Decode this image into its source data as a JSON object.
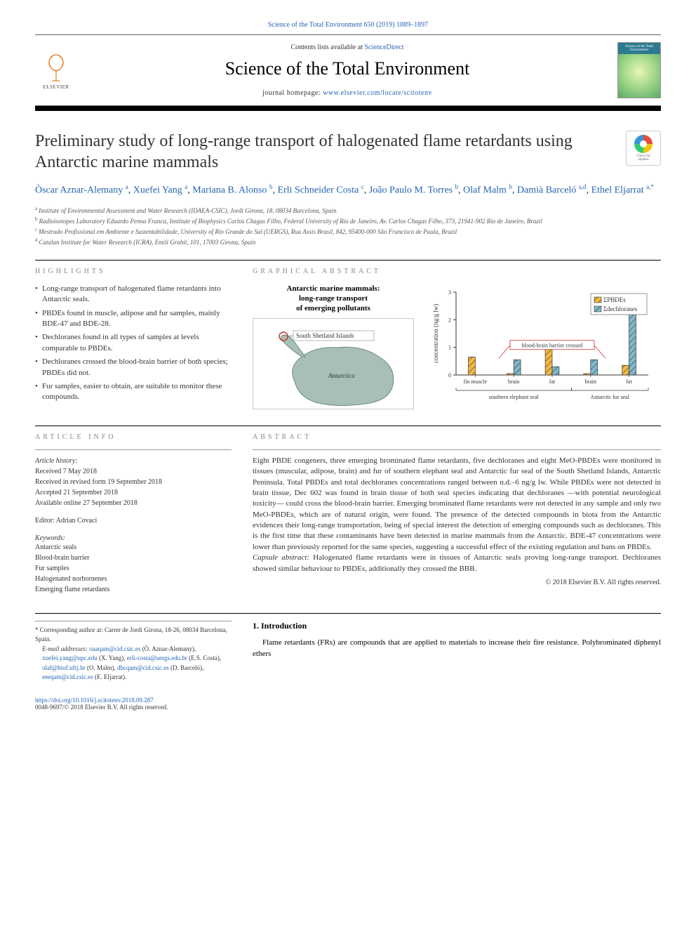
{
  "header": {
    "citation": "Science of the Total Environment 650 (2019) 1889–1897",
    "contents_prefix": "Contents lists available at ",
    "contents_link": "ScienceDirect",
    "journal_name": "Science of the Total Environment",
    "homepage_prefix": "journal homepage: ",
    "homepage_url": "www.elsevier.com/locate/scitotenv",
    "elsevier_label": "ELSEVIER",
    "cover_title": "Science of the Total Environment"
  },
  "check_badge": {
    "line1": "Check for",
    "line2": "updates"
  },
  "title": "Preliminary study of long-range transport of halogenated flame retardants using Antarctic marine mammals",
  "authors": [
    {
      "name": "Òscar Aznar-Alemany",
      "affil": "a"
    },
    {
      "name": "Xuefei Yang",
      "affil": "a"
    },
    {
      "name": "Mariana B. Alonso",
      "affil": "b"
    },
    {
      "name": "Erli Schneider Costa",
      "affil": "c"
    },
    {
      "name": "João Paulo M. Torres",
      "affil": "b"
    },
    {
      "name": "Olaf Malm",
      "affil": "b"
    },
    {
      "name": "Damià Barceló",
      "affil": "a,d"
    },
    {
      "name": "Ethel Eljarrat",
      "affil": "a,*"
    }
  ],
  "affiliations": [
    {
      "sup": "a",
      "text": "Institute of Environmental Assessment and Water Research (IDAEA-CSIC), Jordi Girona, 18, 08034 Barcelona, Spain"
    },
    {
      "sup": "b",
      "text": "Radioisotopes Laboratory Eduardo Penna Franca, Institute of Biophysics Carlos Chagas Filho, Federal University of Rio de Janeiro, Av. Carlos Chagas Filho, 373, 21941-902 Rio de Janeiro, Brazil"
    },
    {
      "sup": "c",
      "text": "Mestrado Profissional em Ambiente e Sustentabilidade, University of Rio Grande do Sul (UERGS), Rua Assis Brasil, 842, 95400-000 São Francisco de Paula, Brazil"
    },
    {
      "sup": "d",
      "text": "Catalan Institute for Water Research (ICRA), Emili Grahit, 101, 17003 Girona, Spain"
    }
  ],
  "highlights": {
    "label": "HIGHLIGHTS",
    "items": [
      "Long-range transport of halogenated flame retardants into Antarctic seals.",
      "PBDEs found in muscle, adipose and fur samples, mainly BDE-47 and BDE-28.",
      "Dechloranes found in all types of samples at levels comparable to PBDEs.",
      "Dechloranes crossed the blood-brain barrier of both species; PBDEs did not.",
      "Fur samples, easier to obtain, are suitable to monitor these compounds."
    ]
  },
  "graphical_abstract": {
    "label": "GRAPHICAL ABSTRACT",
    "map_title_l1": "Antarctic marine mammals:",
    "map_title_l2": "long-range transport",
    "map_title_l3": "of emerging pollutants",
    "map_label_ssi": "South Shetland Islands",
    "map_label_ant": "Antarctica",
    "map_colors": {
      "land": "#a8bfb5",
      "ocean": "#ffffff",
      "outline": "#6a8a7c",
      "circle": "#cc3333",
      "label_box_border": "#999"
    },
    "chart": {
      "type": "bar-grouped",
      "ylabel": "concentration (ng/g lw)",
      "ylim": [
        0,
        3
      ],
      "ytick_step": 1,
      "categories": [
        "fin muscle",
        "brain",
        "fat",
        "brain",
        "fat"
      ],
      "group_labels": [
        "southern elephant seal",
        "Antarctic fur seal"
      ],
      "group_spans": [
        [
          0,
          3
        ],
        [
          3,
          5
        ]
      ],
      "series": [
        {
          "name": "ΣPBDEs",
          "color": "#f4b942",
          "hatch": "diag",
          "values": [
            0.65,
            0.05,
            1.25,
            0.05,
            0.35
          ]
        },
        {
          "name": "Σdechloranes",
          "color": "#7fb8cc",
          "hatch": "diag",
          "values": [
            0.0,
            0.55,
            0.3,
            0.55,
            2.55
          ]
        }
      ],
      "annotation": {
        "text": "blood-brain barrier crossed",
        "box_border": "#cc3333",
        "y": 1.05,
        "x_from": 0.5,
        "x_to": 4.5
      },
      "legend_box_border": "#666",
      "axis_color": "#333",
      "bar_width": 0.36,
      "label_fontsize": 9,
      "tick_fontsize": 8
    }
  },
  "article_info": {
    "label": "ARTICLE INFO",
    "history_label": "Article history:",
    "history": [
      "Received 7 May 2018",
      "Received in revised form 19 September 2018",
      "Accepted 21 September 2018",
      "Available online 27 September 2018"
    ],
    "editor_label": "Editor: ",
    "editor": "Adrian Covaci",
    "keywords_label": "Keywords:",
    "keywords": [
      "Antarctic seals",
      "Blood-brain barrier",
      "Fur samples",
      "Halogenated norbornenes",
      "Emerging flame retardants"
    ]
  },
  "abstract": {
    "label": "ABSTRACT",
    "body": "Eight PBDE congeners, three emerging brominated flame retardants, five dechloranes and eight MeO-PBDEs were monitored in tissues (muscular, adipose, brain) and fur of southern elephant seal and Antarctic fur seal of the South Shetland Islands, Antarctic Peninsula. Total PBDEs and total dechloranes concentrations ranged between n.d.–6 ng/g lw. While PBDEs were not detected in brain tissue, Dec 602 was found in brain tissue of both seal species indicating that dechloranes —with potential neurological toxicity— could cross the blood-brain barrier. Emerging brominated flame retardants were not detected in any sample and only two MeO-PBDEs, which are of natural origin, were found. The presence of the detected compounds in biota from the Antarctic evidences their long-range transportation, being of special interest the detection of emerging compounds such as dechloranes. This is the first time that these contaminants have been detected in marine mammals from the Antarctic. BDE-47 concentrations were lower than previously reported for the same species, suggesting a successful effect of the existing regulation and bans on PBDEs.",
    "capsule_label": "Capsule abstract:",
    "capsule_body": "Halogenated flame retardants were in tissues of Antarctic seals proving long-range transport. Dechloranes showed similar behaviour to PBDEs, additionally they crossed the BBB.",
    "copyright": "© 2018 Elsevier B.V. All rights reserved."
  },
  "corresponding": {
    "star": "*",
    "text": "Corresponding author at: Carrer de Jordi Girona, 18-26, 08034 Barcelona, Spain.",
    "email_label": "E-mail addresses:",
    "emails": [
      {
        "addr": "oaaqam@cid.csic.es",
        "who": "(Ò. Aznar-Alemany)"
      },
      {
        "addr": "xuefei.yang@upc.edu",
        "who": "(X. Yang)"
      },
      {
        "addr": "erli-costa@uergs.edu.br",
        "who": "(E.S. Costa)"
      },
      {
        "addr": "olaf@biof.ufrj.br",
        "who": "(O. Malm)"
      },
      {
        "addr": "dbcqam@cid.csic.es",
        "who": "(D. Barceló)"
      },
      {
        "addr": "eeeqam@cid.csic.es",
        "who": "(E. Eljarrat)."
      }
    ]
  },
  "intro": {
    "heading": "1. Introduction",
    "text": "Flame retardants (FRs) are compounds that are applied to materials to increase their fire resistance. Polybrominated diphenyl ethers"
  },
  "footer": {
    "doi": "https://doi.org/10.1016/j.scitotenv.2018.09.287",
    "issn_line": "0048-9697/© 2018 Elsevier B.V. All rights reserved."
  }
}
